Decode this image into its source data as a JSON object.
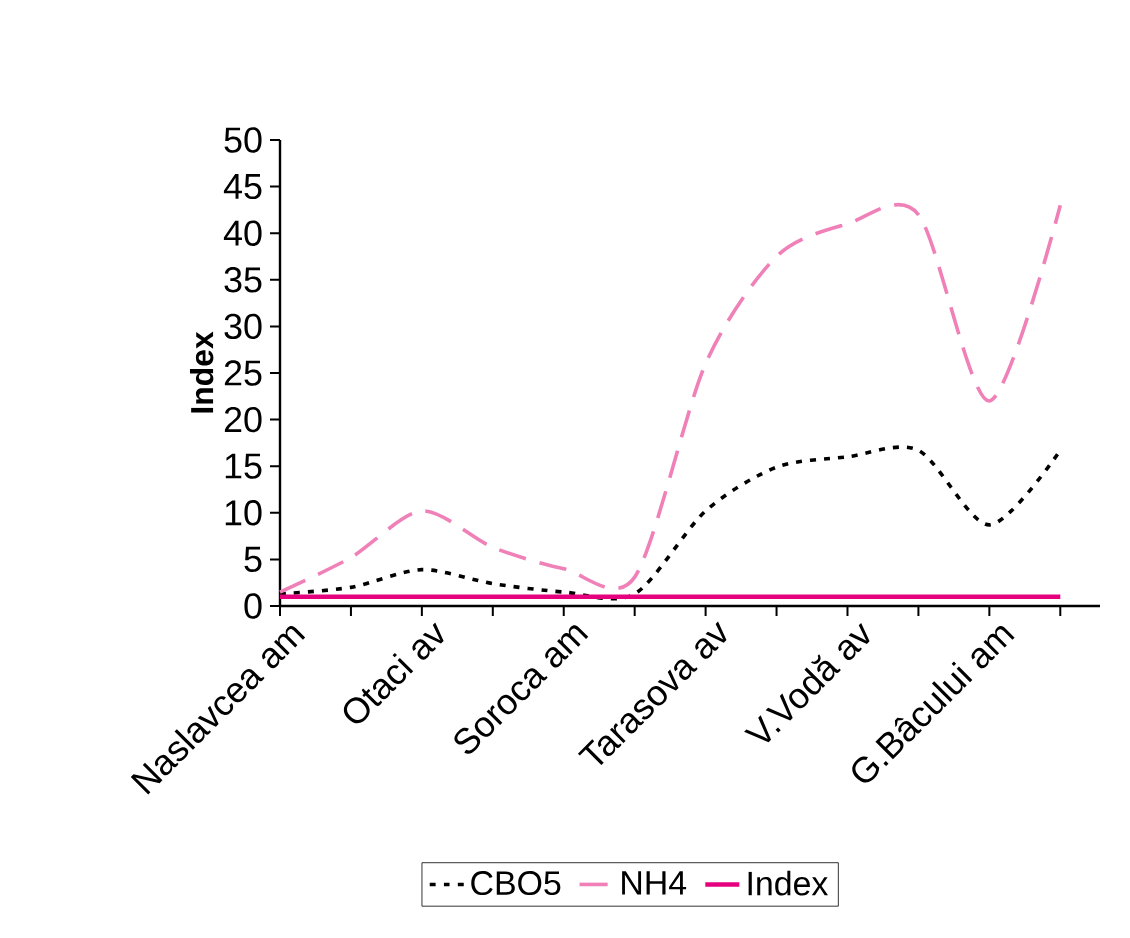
{
  "chart_data": {
    "type": "line",
    "ylabel": "Index",
    "categories": [
      "Naslavcea am",
      null,
      "Otaci av",
      null,
      "Soroca am",
      null,
      "Tarasova av",
      null,
      "V.Vodă av",
      null,
      "G.Bâcului am",
      null
    ],
    "series": [
      {
        "name": "CBO5",
        "color": "#000000",
        "line_style": "dotted",
        "values": [
          1.3,
          2,
          3.9,
          2.4,
          1.5,
          1.3,
          10.2,
          14.9,
          16,
          16.7,
          8.7,
          16.7
        ]
      },
      {
        "name": "NH4",
        "color": "#f080b8",
        "line_style": "dashed",
        "values": [
          1.5,
          5.2,
          10.2,
          6.3,
          4,
          3.1,
          26,
          37.5,
          41,
          42,
          22,
          43
        ]
      },
      {
        "name": "Index",
        "color": "#e6007e",
        "line_style": "solid",
        "values": [
          1,
          1,
          1,
          1,
          1,
          1,
          1,
          1,
          1,
          1,
          1,
          1
        ]
      }
    ],
    "ylim": [
      0,
      50
    ],
    "yticks": [
      0,
      5,
      10,
      15,
      20,
      25,
      30,
      35,
      40,
      45,
      50
    ],
    "grid": false,
    "legend": "bottom",
    "marker": "none"
  }
}
